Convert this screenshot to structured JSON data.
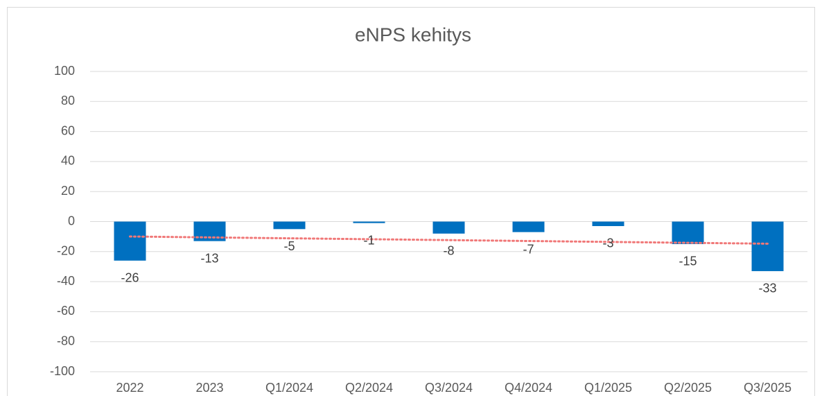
{
  "chart_data": {
    "type": "bar",
    "title": "eNPS kehitys",
    "categories": [
      "2022",
      "2023",
      "Q1/2024",
      "Q2/2024",
      "Q3/2024",
      "Q4/2024",
      "Q1/2025",
      "Q2/2025",
      "Q3/2025"
    ],
    "values": [
      -26,
      -13,
      -5,
      -1,
      -8,
      -7,
      -3,
      -15,
      -33
    ],
    "color": "#0070c0",
    "ylim": [
      -100,
      100
    ],
    "yticks": [
      -100,
      -80,
      -60,
      -40,
      -20,
      0,
      20,
      40,
      60,
      80,
      100
    ],
    "grid": true,
    "data_labels": true,
    "trendline": {
      "kind": "linear",
      "color": "#f07878"
    }
  }
}
